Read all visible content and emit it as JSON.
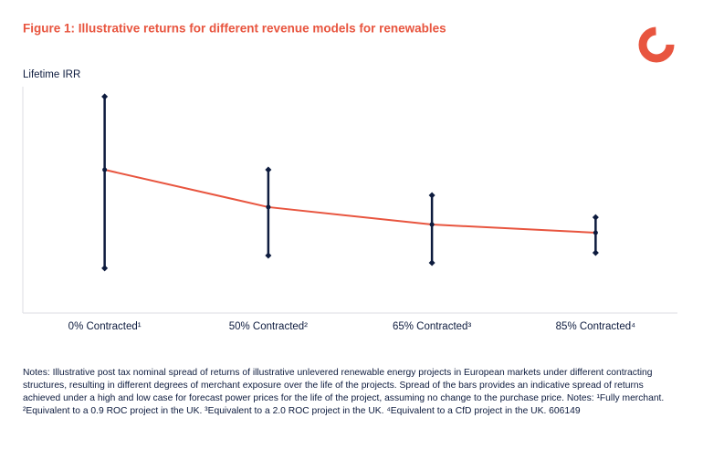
{
  "chart_data": {
    "type": "range-line",
    "title": "Figure 1: Illustrative returns for different revenue models for renewables",
    "y_label": "Lifetime IRR",
    "categories": [
      "0% Contracted¹",
      "50% Contracted²",
      "65% Contracted³",
      "85% Contracted⁴"
    ],
    "values": [
      63.3,
      46.8,
      39.1,
      35.5
    ],
    "high": [
      95.6,
      63.3,
      52,
      42.3
    ],
    "low": [
      19.8,
      25.4,
      22.2,
      26.6
    ],
    "line_color": "#e8553f",
    "bar_color": "#0d1b3e",
    "ylim": [
      0,
      100
    ],
    "notes": "Notes: Illustrative post tax nominal spread of returns of illustrative unlevered renewable energy projects in European markets under different contracting structures, resulting in different degrees of merchant exposure over the life of the projects. Spread of the bars provides an indicative spread of returns achieved under a high and low case for forecast power prices for the life of the project, assuming no change to the purchase price. Notes: ¹Fully merchant. ²Equivalent to a 0.9 ROC project in the UK. ³Equivalent to a 2.0 ROC project in the UK. ⁴Equivalent to a CfD project in the UK. 606149"
  }
}
